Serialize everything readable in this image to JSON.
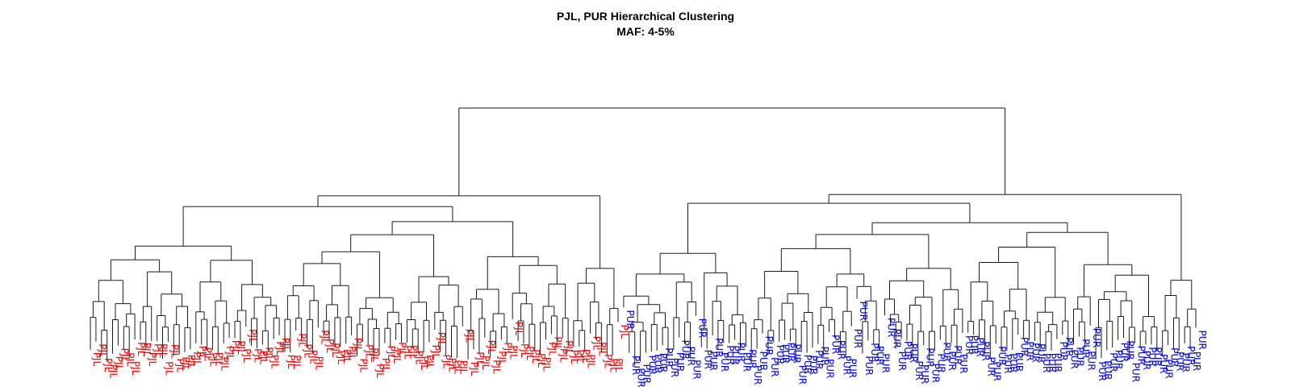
{
  "chart_data": {
    "type": "dendrogram",
    "title": "PJL, PUR Hierarchical Clustering",
    "subtitle": "MAF: 4-5%",
    "xlabel": "",
    "ylabel": "",
    "colors": {
      "PJL": "#ff0000",
      "PUR": "#0000ff"
    },
    "top_split": [
      "PJL",
      "PUR"
    ],
    "groups": [
      {
        "name": "PJL",
        "leaf_count": 96,
        "leaf_label": "PJL"
      },
      {
        "name": "PUR",
        "leaf_count": 104,
        "leaf_label": "PUR"
      }
    ]
  }
}
